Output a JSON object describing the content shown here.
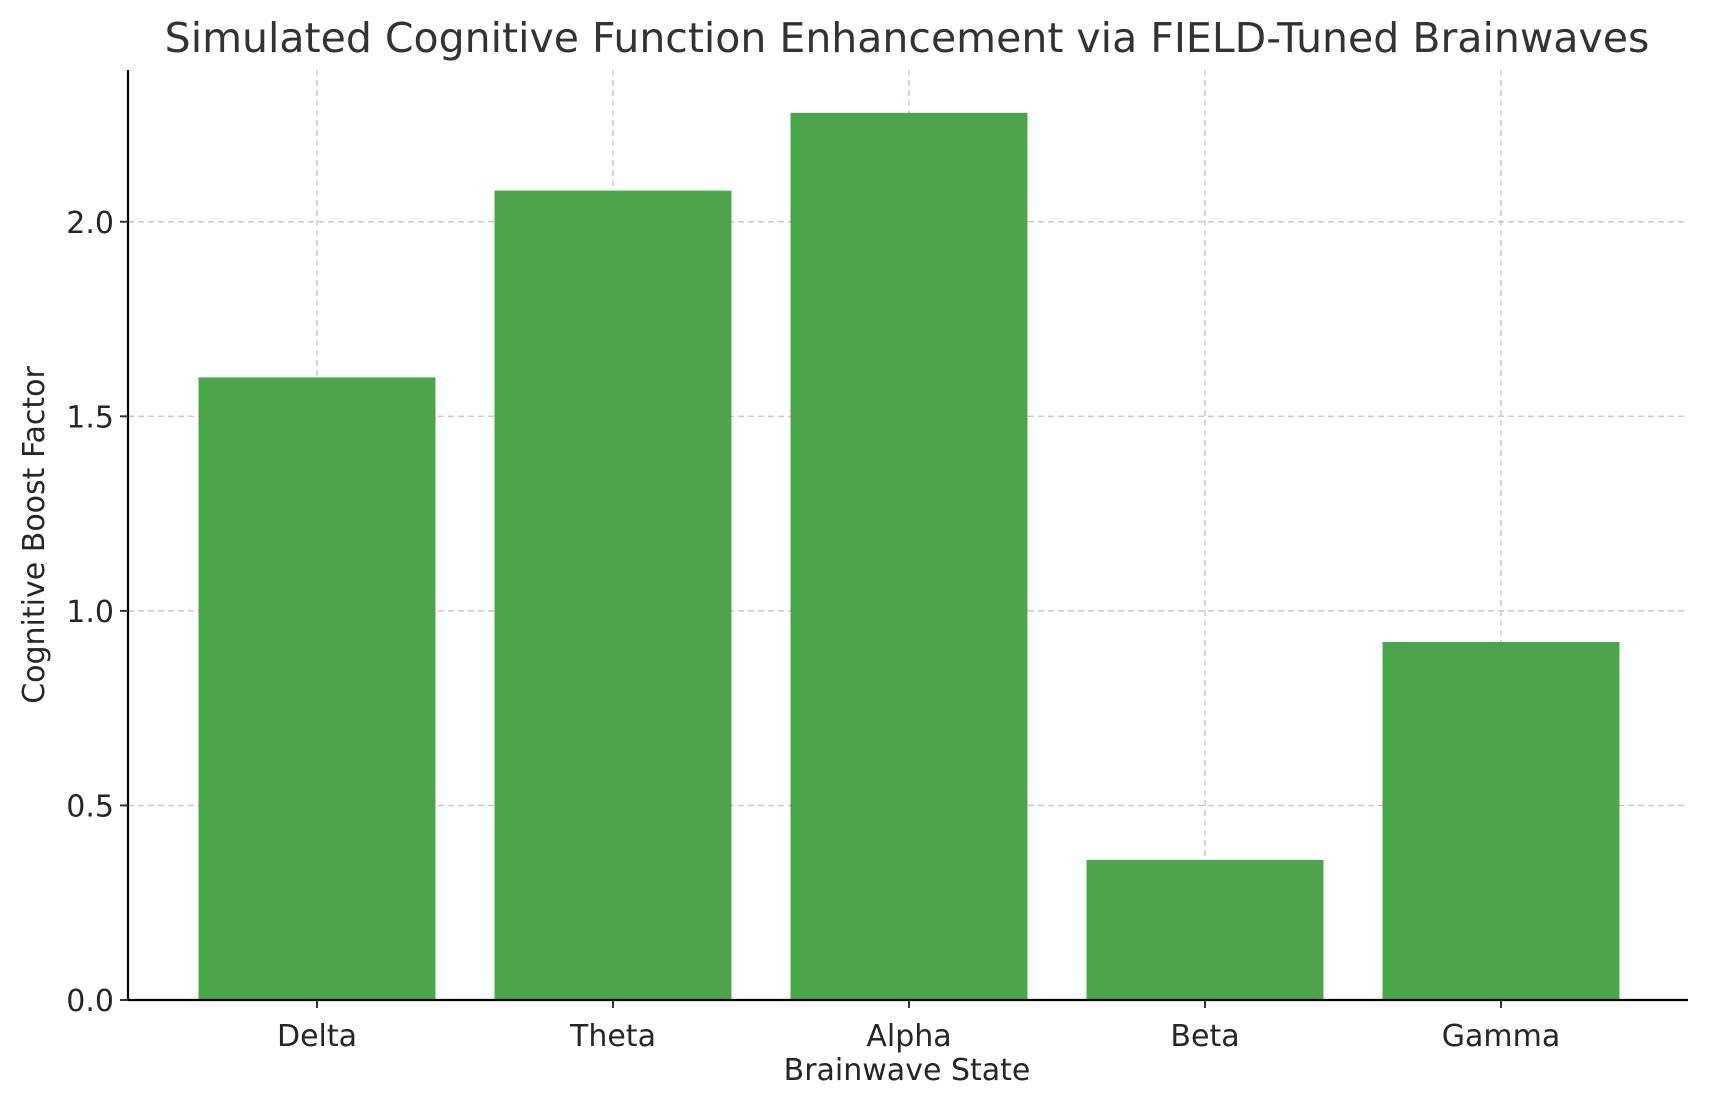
{
  "chart_data": {
    "type": "bar",
    "title": "Simulated Cognitive Function Enhancement via FIELD-Tuned Brainwaves",
    "xlabel": "Brainwave State",
    "ylabel": "Cognitive Boost Factor",
    "categories": [
      "Delta",
      "Theta",
      "Alpha",
      "Beta",
      "Gamma"
    ],
    "values": [
      1.6,
      2.08,
      2.28,
      0.36,
      0.92
    ],
    "yticks": [
      0.0,
      0.5,
      1.0,
      1.5,
      2.0
    ],
    "ytick_labels": [
      "0.0",
      "0.5",
      "1.0",
      "1.5",
      "2.0"
    ],
    "ylim": [
      0,
      2.39
    ],
    "grid": true,
    "bar_color": "#4ca44c"
  }
}
